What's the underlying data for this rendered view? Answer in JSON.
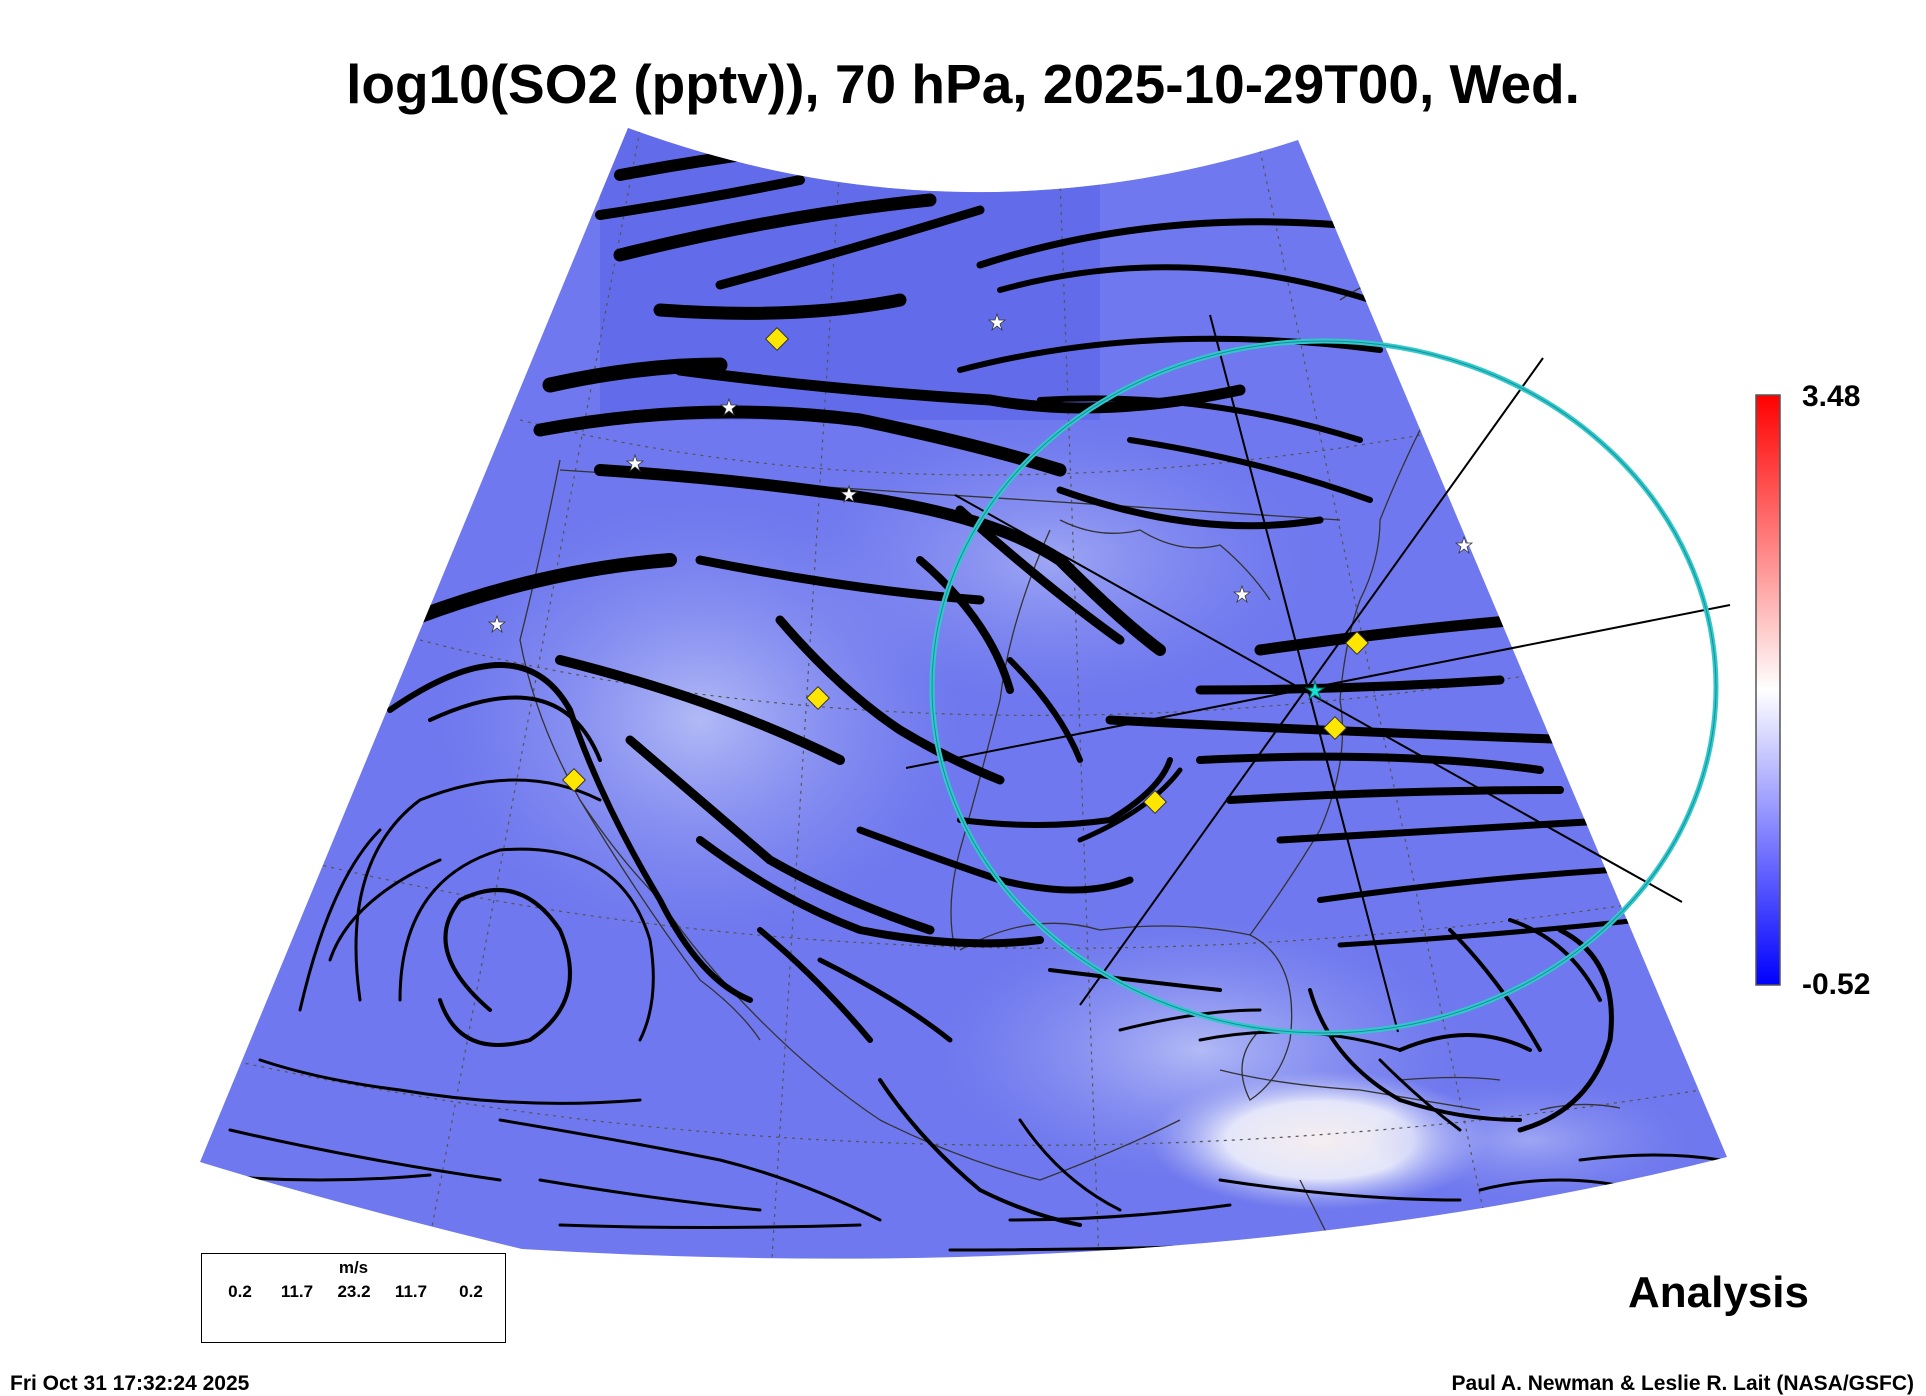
{
  "title": "log10(SO2 (pptv)), 70 hPa, 2025-10-29T00, Wed.",
  "colorbar": {
    "max_label": "3.48",
    "min_label": "-0.52",
    "colors": {
      "top": "#ff0000",
      "mid": "#ffffff",
      "bottom": "#0000ff"
    }
  },
  "field_colors": {
    "background": "#6f78ee",
    "light": "#aab3f5",
    "plume": "#f0ecef"
  },
  "ring_color": "#2fc9c9",
  "marker_colors": {
    "diamond": "#ffe600",
    "star": "#ffffff",
    "center": "#19e0d0"
  },
  "legend": {
    "units": "m/s",
    "ticks": [
      "0.2",
      "11.7",
      "23.2",
      "11.7",
      "0.2"
    ]
  },
  "product_label": "Analysis",
  "footer": {
    "timestamp": "Fri Oct 31 17:32:24 2025",
    "credit": "Paul A. Newman & Leslie R. Lait (NASA/GSFC)"
  }
}
